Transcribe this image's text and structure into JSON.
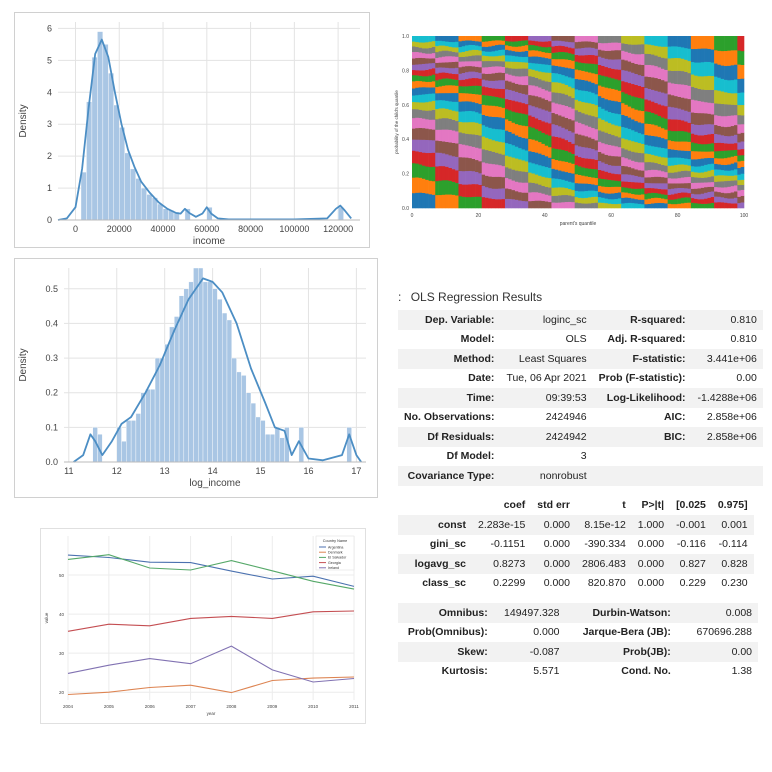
{
  "chart_data": [
    {
      "type": "bar",
      "subtype": "histogram-with-kde",
      "title": "",
      "xlabel": "income",
      "ylabel": "Density",
      "xlim": [
        -8000,
        130000
      ],
      "ylim": [
        0,
        6.2
      ],
      "xticks": [
        0,
        20000,
        40000,
        60000,
        80000,
        100000,
        120000
      ],
      "xtick_labels": [
        "0",
        "20000",
        "40000",
        "60000",
        "80000",
        "100000",
        "120000"
      ],
      "yticks": [
        0,
        1,
        2,
        3,
        4,
        5,
        6
      ],
      "ytick_labels": [
        "0",
        "1",
        "2",
        "3",
        "4",
        "5",
        "6"
      ],
      "y_scale_label": "1e-5",
      "bin_width": 2500,
      "bin_starts": [
        2500,
        5000,
        7500,
        10000,
        12500,
        15000,
        17500,
        20000,
        22500,
        25000,
        27500,
        30000,
        32500,
        35000,
        37500,
        40000,
        42500,
        45000,
        50000,
        60000,
        120000
      ],
      "values": [
        1.5,
        3.7,
        5.1,
        5.9,
        5.5,
        4.6,
        3.6,
        2.9,
        2.1,
        1.6,
        1.3,
        1.0,
        0.8,
        0.7,
        0.5,
        0.35,
        0.3,
        0.25,
        0.35,
        0.4,
        0.4
      ],
      "kde_x": [
        -8000,
        -4000,
        0,
        3000,
        6000,
        9000,
        12000,
        15000,
        18000,
        21000,
        24000,
        27000,
        30000,
        34000,
        38000,
        42000,
        46000,
        48000,
        50000,
        52000,
        55000,
        58000,
        60000,
        62000,
        65000,
        70000,
        80000,
        100000,
        115000,
        119000,
        121000,
        123000,
        126000
      ],
      "kde_y": [
        0,
        0.05,
        0.4,
        1.6,
        3.5,
        5.2,
        5.65,
        5.1,
        4.0,
        3.0,
        2.2,
        1.65,
        1.2,
        0.85,
        0.55,
        0.35,
        0.22,
        0.2,
        0.35,
        0.22,
        0.1,
        0.2,
        0.4,
        0.2,
        0.05,
        0.02,
        0.02,
        0.02,
        0.05,
        0.35,
        0.45,
        0.3,
        0.05
      ],
      "grid": true,
      "color": "#4c8ec4"
    },
    {
      "type": "heatmap",
      "subtype": "stacked-quantile-transition",
      "title": "",
      "xlabel": "parent's quantile",
      "ylabel": "probability of the child's quantile",
      "xlim": [
        0,
        100
      ],
      "ylim": [
        0,
        1
      ],
      "xticks": [
        0,
        20,
        40,
        60,
        80,
        100
      ],
      "xtick_labels": [
        "0",
        "20",
        "40",
        "60",
        "80",
        "100"
      ],
      "yticks": [
        0,
        0.2,
        0.4,
        0.6,
        0.8,
        1.0
      ],
      "ytick_labels": [
        "0.0",
        "0.2",
        "0.4",
        "0.6",
        "0.8",
        "1.0"
      ],
      "columns": 100,
      "layers_per_column": 20,
      "palette": [
        "#1f77b4",
        "#ff7f0e",
        "#2ca02c",
        "#d62728",
        "#9467bd",
        "#8c564b",
        "#e377c2",
        "#7f7f7f",
        "#bcbd22",
        "#17becf"
      ]
    },
    {
      "type": "bar",
      "subtype": "histogram-with-kde",
      "title": "",
      "xlabel": "log_income",
      "ylabel": "Density",
      "xlim": [
        10.9,
        17.2
      ],
      "ylim": [
        0,
        0.56
      ],
      "xticks": [
        11,
        12,
        13,
        14,
        15,
        16,
        17
      ],
      "xtick_labels": [
        "11",
        "12",
        "13",
        "14",
        "15",
        "16",
        "17"
      ],
      "yticks": [
        0,
        0.1,
        0.2,
        0.3,
        0.4,
        0.5
      ],
      "ytick_labels": [
        "0.0",
        "0.1",
        "0.2",
        "0.3",
        "0.4",
        "0.5"
      ],
      "bin_width": 0.1,
      "bin_starts": [
        11.5,
        11.6,
        12.0,
        12.1,
        12.2,
        12.3,
        12.4,
        12.5,
        12.6,
        12.7,
        12.8,
        12.9,
        13.0,
        13.1,
        13.2,
        13.3,
        13.4,
        13.5,
        13.6,
        13.7,
        13.8,
        13.9,
        14.0,
        14.1,
        14.2,
        14.3,
        14.4,
        14.5,
        14.6,
        14.7,
        14.8,
        14.9,
        15.0,
        15.1,
        15.2,
        15.3,
        15.4,
        15.5,
        15.8,
        16.8
      ],
      "values": [
        0.1,
        0.08,
        0.1,
        0.06,
        0.12,
        0.12,
        0.14,
        0.2,
        0.21,
        0.21,
        0.3,
        0.3,
        0.34,
        0.39,
        0.42,
        0.48,
        0.5,
        0.52,
        0.56,
        0.56,
        0.52,
        0.52,
        0.5,
        0.47,
        0.43,
        0.41,
        0.3,
        0.26,
        0.25,
        0.2,
        0.17,
        0.13,
        0.12,
        0.08,
        0.08,
        0.1,
        0.07,
        0.1,
        0.1,
        0.1
      ],
      "kde_x": [
        11.1,
        11.3,
        11.45,
        11.55,
        11.7,
        11.9,
        12.1,
        12.3,
        12.6,
        12.9,
        13.2,
        13.5,
        13.8,
        14.0,
        14.2,
        14.5,
        14.8,
        15.1,
        15.3,
        15.5,
        15.65,
        15.8,
        16.0,
        16.3,
        16.7,
        16.85,
        17.0,
        17.1
      ],
      "kde_y": [
        0.0,
        0.02,
        0.08,
        0.06,
        0.02,
        0.06,
        0.11,
        0.13,
        0.2,
        0.28,
        0.38,
        0.47,
        0.53,
        0.52,
        0.49,
        0.4,
        0.27,
        0.17,
        0.1,
        0.09,
        0.02,
        0.06,
        0.01,
        0.005,
        0.02,
        0.08,
        0.02,
        0.0
      ],
      "grid": true,
      "color": "#4c8ec4"
    },
    {
      "type": "line",
      "title": "",
      "xlabel": "year",
      "ylabel": "value",
      "legend_title": "Country Name",
      "legend_position": "top-right",
      "x": [
        2004,
        2005,
        2006,
        2007,
        2008,
        2009,
        2010,
        2011
      ],
      "xtick_labels": [
        "2004",
        "2005",
        "2006",
        "2007",
        "2008",
        "2009",
        "2010",
        "2011"
      ],
      "ylim": [
        18,
        60
      ],
      "yticks": [
        20,
        30,
        40,
        50
      ],
      "ytick_labels": [
        "20",
        "30",
        "40",
        "50"
      ],
      "series": [
        {
          "name": "Argentina",
          "color": "#4c72b0",
          "values": [
            55.1,
            54.5,
            53.3,
            53.2,
            51.0,
            49.0,
            49.7,
            47.1
          ]
        },
        {
          "name": "Denmark",
          "color": "#dd8452",
          "values": [
            19.4,
            20.0,
            21.2,
            21.8,
            19.9,
            23.0,
            23.6,
            23.9
          ]
        },
        {
          "name": "El Salvador",
          "color": "#55a868",
          "values": [
            54.0,
            55.2,
            51.8,
            51.3,
            53.7,
            51.1,
            48.4,
            46.4
          ]
        },
        {
          "name": "Georgia",
          "color": "#c44e52",
          "values": [
            35.6,
            37.4,
            37.0,
            38.9,
            39.4,
            38.9,
            40.6,
            40.8
          ]
        },
        {
          "name": "Ireland",
          "color": "#8172b2",
          "values": [
            24.8,
            26.9,
            28.6,
            27.3,
            31.8,
            25.7,
            22.6,
            23.5
          ]
        }
      ]
    }
  ],
  "ols": {
    "prompt": ":",
    "title": "OLS Regression Results",
    "summary": [
      [
        "Dep. Variable:",
        "loginc_sc",
        "R-squared:",
        "0.810"
      ],
      [
        "Model:",
        "OLS",
        "Adj. R-squared:",
        "0.810"
      ],
      [
        "Method:",
        "Least Squares",
        "F-statistic:",
        "3.441e+06"
      ],
      [
        "Date:",
        "Tue, 06 Apr 2021",
        "Prob (F-statistic):",
        "0.00"
      ],
      [
        "Time:",
        "09:39:53",
        "Log-Likelihood:",
        "-1.4288e+06"
      ],
      [
        "No. Observations:",
        "2424946",
        "AIC:",
        "2.858e+06"
      ],
      [
        "Df Residuals:",
        "2424942",
        "BIC:",
        "2.858e+06"
      ],
      [
        "Df Model:",
        "3",
        "",
        ""
      ],
      [
        "Covariance Type:",
        "nonrobust",
        "",
        ""
      ]
    ],
    "coef_header": [
      "",
      "coef",
      "std err",
      "t",
      "P>|t|",
      "[0.025",
      "0.975]"
    ],
    "coef_rows": [
      [
        "const",
        "2.283e-15",
        "0.000",
        "8.15e-12",
        "1.000",
        "-0.001",
        "0.001"
      ],
      [
        "gini_sc",
        "-0.1151",
        "0.000",
        "-390.334",
        "0.000",
        "-0.116",
        "-0.114"
      ],
      [
        "logavg_sc",
        "0.8273",
        "0.000",
        "2806.483",
        "0.000",
        "0.827",
        "0.828"
      ],
      [
        "class_sc",
        "0.2299",
        "0.000",
        "820.870",
        "0.000",
        "0.229",
        "0.230"
      ]
    ],
    "diag_rows": [
      [
        "Omnibus:",
        "149497.328",
        "Durbin-Watson:",
        "0.008"
      ],
      [
        "Prob(Omnibus):",
        "0.000",
        "Jarque-Bera (JB):",
        "670696.288"
      ],
      [
        "Skew:",
        "-0.087",
        "Prob(JB):",
        "0.00"
      ],
      [
        "Kurtosis:",
        "5.571",
        "Cond. No.",
        "1.38"
      ]
    ]
  }
}
